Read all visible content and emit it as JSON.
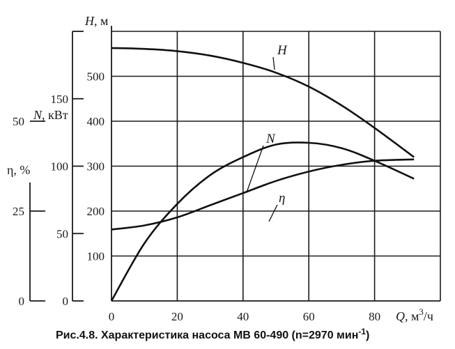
{
  "chart_data": {
    "type": "line",
    "x": [
      0,
      10,
      20,
      30,
      40,
      50,
      60,
      70,
      80,
      92
    ],
    "xticks": [
      "0",
      "20",
      "40",
      "60",
      "80"
    ],
    "xtick_values": [
      0,
      20,
      40,
      60,
      80
    ],
    "xlabel": "Q, м",
    "xlabel_sup": "3",
    "xlabel_tail": "/ч",
    "xlim": [
      0,
      100
    ],
    "axes": [
      {
        "id": "H",
        "label": "H, м",
        "ticks": [
          "100",
          "200",
          "300",
          "400",
          "500"
        ],
        "tick_values": [
          100,
          200,
          300,
          400,
          500
        ],
        "range": [
          0,
          600
        ]
      },
      {
        "id": "N",
        "label": "N, кВт",
        "ticks": [
          "0",
          "50",
          "100",
          "150"
        ],
        "tick_values": [
          0,
          50,
          100,
          150
        ],
        "range": [
          0,
          200
        ]
      },
      {
        "id": "eta",
        "label": "η, %",
        "ticks": [
          "0",
          "25",
          "50"
        ],
        "tick_values": [
          0,
          25,
          50
        ],
        "range": [
          0,
          75
        ]
      }
    ],
    "series": [
      {
        "name": "H",
        "axis": "H",
        "values": [
          563,
          561,
          556,
          546,
          530,
          508,
          477,
          435,
          385,
          320
        ]
      },
      {
        "name": "N",
        "axis": "N",
        "values": [
          53,
          56,
          62,
          71,
          80,
          89,
          96,
          101,
          104,
          105
        ]
      },
      {
        "name": "η",
        "axis": "eta",
        "values": [
          0,
          16,
          27,
          35,
          40,
          43.5,
          44,
          42.5,
          39,
          34
        ]
      }
    ],
    "grid": true,
    "caption": "Рис.4.8. Характеристика насоса МВ 60-490 (n=2970 мин",
    "caption_sup": "-1",
    "caption_tail": ")"
  }
}
